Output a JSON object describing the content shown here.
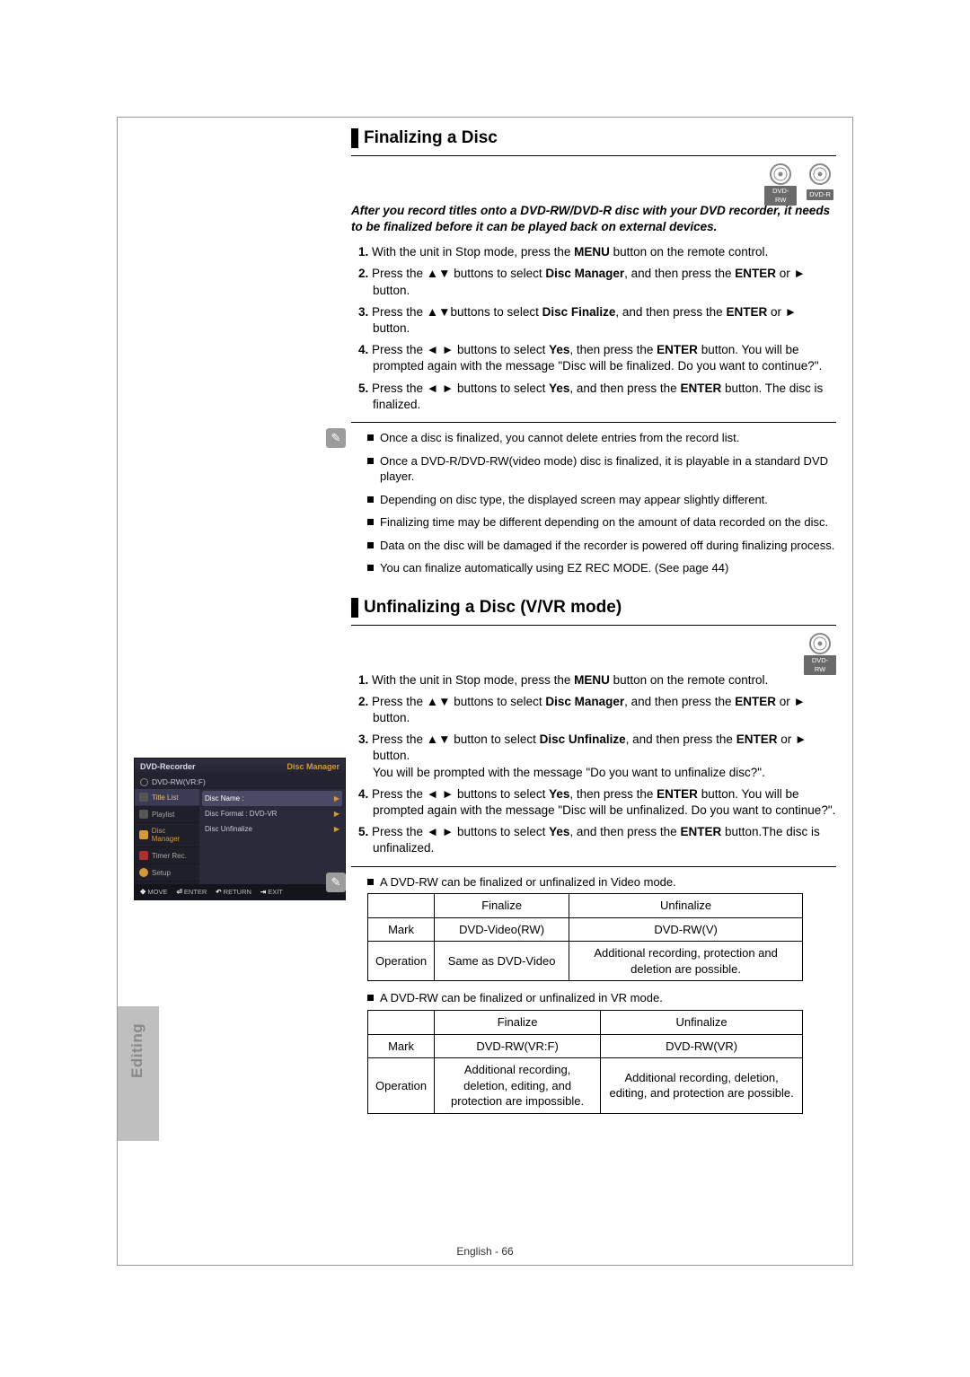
{
  "sidebar_label": "Editing",
  "footer": "English - 66",
  "badges": {
    "dvdrw": "DVD-RW",
    "dvdr": "DVD-R"
  },
  "section1": {
    "title": "Finalizing a Disc",
    "intro": "After you record titles onto a DVD-RW/DVD-R disc with your DVD recorder, it needs to be finalized before it can be played back on external devices.",
    "steps": [
      {
        "n": "1.",
        "pre": "With the unit in Stop mode, press the ",
        "b1": "MENU",
        "post": " button on the remote control."
      },
      {
        "n": "2.",
        "pre": "Press the ▲▼ buttons to select ",
        "b1": "Disc Manager",
        "mid": ", and then press the ",
        "b2": "ENTER",
        "post": " or ► button."
      },
      {
        "n": "3.",
        "pre": "Press the ▲▼buttons to select ",
        "b1": "Disc Finalize",
        "mid": ", and then press the ",
        "b2": "ENTER",
        "post": " or ► button."
      },
      {
        "n": "4.",
        "pre": "Press the ◄ ► buttons to select ",
        "b1": "Yes",
        "mid": ", then press the ",
        "b2": "ENTER",
        "post": " button. You will be prompted again with the message \"Disc will be finalized. Do you want to continue?\"."
      },
      {
        "n": "5.",
        "pre": "Press the ◄ ► buttons to select ",
        "b1": "Yes",
        "mid": ", and then press the ",
        "b2": "ENTER",
        "post": " button. The disc is finalized."
      }
    ],
    "notes": [
      "Once a disc is finalized, you cannot delete entries from the record list.",
      "Once a DVD-R/DVD-RW(video mode) disc is finalized, it is playable in a standard DVD player.",
      "Depending on disc type, the displayed screen may appear slightly different.",
      "Finalizing time may be different depending on the amount of data recorded on the disc.",
      "Data on the disc will be damaged if the recorder is powered off during finalizing process.",
      "You can finalize automatically using EZ REC MODE. (See page 44)"
    ]
  },
  "section2": {
    "title": "Unfinalizing a Disc (V/VR mode)",
    "steps": [
      {
        "n": "1.",
        "pre": "With the unit in Stop mode, press the ",
        "b1": "MENU",
        "post": " button on the remote control."
      },
      {
        "n": "2.",
        "pre": "Press the ▲▼ buttons to select ",
        "b1": "Disc Manager",
        "mid": ", and then press the ",
        "b2": "ENTER",
        "post": " or ► button."
      },
      {
        "n": "3.",
        "pre": "Press the ▲▼ button to select ",
        "b1": "Disc Unfinalize",
        "mid": ", and then press the ",
        "b2": "ENTER",
        "post": " or ► button.\nYou will be prompted with the message \"Do you want to unfinalize disc?\"."
      },
      {
        "n": "4.",
        "pre": "Press the ◄ ► buttons to select ",
        "b1": "Yes",
        "mid": ", then press the ",
        "b2": "ENTER",
        "post": " button. You will be prompted again with the message \"Disc will be unfinalized. Do you want to continue?\"."
      },
      {
        "n": "5.",
        "pre": "Press the ◄ ► buttons to select ",
        "b1": "Yes",
        "mid": ", and then press the ",
        "b2": "ENTER",
        "post": " button.The disc is unfinalized."
      }
    ],
    "note_caption1": "A DVD-RW can be finalized or unfinalized in Video mode.",
    "table1": {
      "head": [
        "",
        "Finalize",
        "Unfinalize"
      ],
      "rows": [
        [
          "Mark",
          "DVD-Video(RW)",
          "DVD-RW(V)"
        ],
        [
          "Operation",
          "Same as DVD-Video",
          "Additional recording, protection and deletion are possible."
        ]
      ],
      "col_widths": [
        "72px",
        "150px",
        "260px"
      ]
    },
    "note_caption2": "A DVD-RW can be finalized or unfinalized in VR mode.",
    "table2": {
      "head": [
        "",
        "Finalize",
        "Unfinalize"
      ],
      "rows": [
        [
          "Mark",
          "DVD-RW(VR:F)",
          "DVD-RW(VR)"
        ],
        [
          "Operation",
          "Additional recording, deletion, editing, and protection are impossible.",
          "Additional recording, deletion, editing, and protection are possible."
        ]
      ],
      "col_widths": [
        "72px",
        "185px",
        "225px"
      ]
    }
  },
  "menu": {
    "title_left": "DVD-Recorder",
    "title_right": "Disc Manager",
    "subtitle": "DVD-RW(VR:F)",
    "left_items": [
      {
        "label": "Title List",
        "active": true
      },
      {
        "label": "Playlist"
      },
      {
        "label": "Disc Manager",
        "orange": true
      },
      {
        "label": "Timer Rec."
      },
      {
        "label": "Setup"
      }
    ],
    "right_items": [
      {
        "label": "Disc Name :",
        "sel": true
      },
      {
        "label": "Disc Format : DVD-VR"
      },
      {
        "label": "Disc Unfinalize"
      }
    ],
    "footer": [
      {
        "sym": "✥",
        "label": "MOVE"
      },
      {
        "sym": "⏎",
        "label": "ENTER"
      },
      {
        "sym": "↶",
        "label": "RETURN"
      },
      {
        "sym": "⇥",
        "label": "EXIT"
      }
    ]
  }
}
